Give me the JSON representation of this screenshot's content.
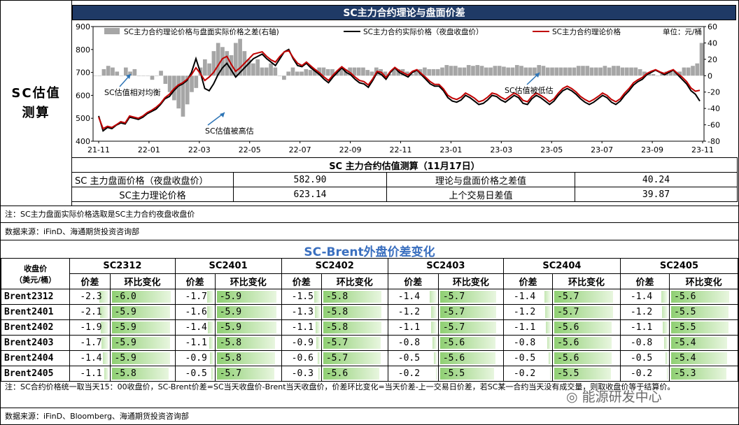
{
  "side_label": "SC估值\n测算",
  "chart_data": {
    "type": "line",
    "title": "SC主力合约理论与盘面价差",
    "unit_label": "单位：元/桶",
    "x_ticks": [
      "21-11",
      "22-01",
      "22-03",
      "22-05",
      "22-07",
      "22-09",
      "22-11",
      "23-01",
      "23-03",
      "23-05",
      "23-07",
      "23-09",
      "23-11"
    ],
    "y_left": {
      "min": 400,
      "max": 900,
      "ticks": [
        400,
        500,
        600,
        700,
        800,
        900
      ]
    },
    "y_right": {
      "min": -80,
      "max": 60,
      "ticks": [
        -80,
        -60,
        -40,
        -20,
        0,
        20,
        40,
        60
      ]
    },
    "series": [
      {
        "name": "SC主力合约理论价格与盘面实际价格之差(右轴)",
        "type": "bar",
        "color": "#a6a6a6"
      },
      {
        "name": "SC主力合约实际价格（夜盘收盘价）",
        "type": "line",
        "color": "#000000"
      },
      {
        "name": "SC主力合约理论价格",
        "type": "line",
        "color": "#c00000"
      }
    ],
    "annotations": [
      "SC估值相对均衡",
      "SC估值被高估",
      "SC估值被低估"
    ],
    "actual_price": [
      510,
      445,
      460,
      455,
      470,
      480,
      475,
      505,
      500,
      495,
      505,
      520,
      530,
      540,
      560,
      585,
      595,
      620,
      640,
      650,
      665,
      700,
      760,
      700,
      630,
      620,
      650,
      690,
      720,
      740,
      710,
      680,
      700,
      720,
      740,
      760,
      770,
      780,
      760,
      745,
      730,
      760,
      790,
      800,
      760,
      730,
      725,
      740,
      720,
      705,
      690,
      670,
      655,
      680,
      700,
      720,
      700,
      690,
      670,
      655,
      650,
      635,
      665,
      700,
      690,
      670,
      700,
      720,
      700,
      690,
      680,
      700,
      710,
      690,
      670,
      650,
      640,
      640,
      620,
      590,
      575,
      570,
      580,
      600,
      590,
      575,
      560,
      565,
      580,
      600,
      595,
      580,
      570,
      585,
      600,
      590,
      565,
      560,
      585,
      600,
      590,
      575,
      560,
      575,
      600,
      620,
      630,
      620,
      605,
      585,
      570,
      560,
      570,
      585,
      600,
      590,
      570,
      560,
      575,
      600,
      620,
      645,
      660,
      670,
      690,
      700,
      710,
      700,
      690,
      700,
      710,
      690,
      670,
      650,
      620,
      605,
      575
    ],
    "theory_price": [
      505,
      455,
      465,
      460,
      472,
      485,
      480,
      510,
      505,
      500,
      510,
      525,
      535,
      548,
      565,
      590,
      605,
      628,
      645,
      655,
      670,
      690,
      720,
      695,
      665,
      680,
      700,
      730,
      760,
      770,
      735,
      705,
      720,
      740,
      760,
      780,
      785,
      790,
      770,
      755,
      745,
      770,
      790,
      795,
      765,
      740,
      730,
      745,
      728,
      712,
      698,
      680,
      665,
      688,
      708,
      725,
      710,
      698,
      680,
      665,
      660,
      645,
      672,
      705,
      700,
      678,
      705,
      722,
      708,
      698,
      688,
      705,
      712,
      695,
      678,
      660,
      648,
      648,
      628,
      600,
      588,
      582,
      592,
      610,
      600,
      588,
      572,
      578,
      592,
      610,
      605,
      592,
      582,
      596,
      610,
      600,
      578,
      572,
      595,
      610,
      600,
      588,
      572,
      585,
      610,
      630,
      640,
      630,
      615,
      595,
      582,
      572,
      582,
      595,
      610,
      600,
      582,
      572,
      585,
      610,
      630,
      655,
      668,
      678,
      695,
      705,
      712,
      702,
      695,
      705,
      712,
      695,
      680,
      660,
      632,
      618,
      622
    ],
    "spread": [
      0,
      0,
      8,
      12,
      10,
      5,
      0,
      10,
      5,
      8,
      0,
      0,
      0,
      -5,
      0,
      6,
      -10,
      -20,
      -30,
      -40,
      -50,
      -35,
      -20,
      -15,
      10,
      20,
      15,
      30,
      40,
      35,
      30,
      25,
      40,
      45,
      30,
      20,
      15,
      20,
      10,
      10,
      15,
      10,
      0,
      -5,
      5,
      10,
      5,
      5,
      8,
      7,
      8,
      10,
      10,
      8,
      8,
      5,
      10,
      8,
      10,
      10,
      10,
      10,
      7,
      5,
      10,
      8,
      5,
      2,
      8,
      8,
      8,
      5,
      2,
      5,
      8,
      10,
      8,
      8,
      8,
      10,
      13,
      12,
      12,
      10,
      10,
      13,
      12,
      13,
      12,
      10,
      10,
      12,
      12,
      11,
      10,
      10,
      13,
      12,
      10,
      10,
      10,
      13,
      12,
      10,
      10,
      10,
      10,
      10,
      10,
      10,
      12,
      12,
      12,
      10,
      10,
      10,
      12,
      10,
      12,
      12,
      10,
      10,
      10,
      10,
      8,
      5,
      3,
      2,
      0,
      2,
      5,
      5,
      5,
      5,
      10,
      10,
      12,
      15,
      40
    ]
  },
  "valuation": {
    "header": "SC 主力合约估值测算（11月17日）",
    "rows": [
      {
        "l1": "SC 主力盘面价格（夜盘收盘价）",
        "v1": "582.90",
        "l2": "理论与盘面价格之差值",
        "v2": "40.24"
      },
      {
        "l1": "SC主力理论价格",
        "v1": "623.14",
        "l2": "上个交易日差值",
        "v2": "39.87"
      }
    ]
  },
  "note1": "注：SC主力盘面实际价格选取是SC主力合约夜盘收盘价",
  "source1": "数据来源：iFinD、海通期货投资咨询部",
  "section_title": "SC-Brent外盘价差变化",
  "spread_table": {
    "corner": "收盘价\n（美元/桶）",
    "contracts": [
      "SC2312",
      "SC2401",
      "SC2402",
      "SC2403",
      "SC2404",
      "SC2405"
    ],
    "sub_headers": [
      "价差",
      "环比变化"
    ],
    "rows": [
      {
        "label": "Brent2312",
        "cells": [
          [
            "-2.3",
            "-6.0"
          ],
          [
            "-1.7",
            "-5.9"
          ],
          [
            "-1.5",
            "-5.8"
          ],
          [
            "-1.4",
            "-5.7"
          ],
          [
            "-1.4",
            "-5.7"
          ],
          [
            "-1.4",
            "-5.6"
          ]
        ]
      },
      {
        "label": "Brent2401",
        "cells": [
          [
            "-2.1",
            "-5.9"
          ],
          [
            "-1.6",
            "-5.9"
          ],
          [
            "-1.3",
            "-5.8"
          ],
          [
            "-1.2",
            "-5.7"
          ],
          [
            "-1.2",
            "-5.7"
          ],
          [
            "-1.2",
            "-5.5"
          ]
        ]
      },
      {
        "label": "Brent2402",
        "cells": [
          [
            "-1.9",
            "-5.9"
          ],
          [
            "-1.4",
            "-5.9"
          ],
          [
            "-1.1",
            "-5.8"
          ],
          [
            "-1.1",
            "-5.7"
          ],
          [
            "-1.1",
            "-5.6"
          ],
          [
            "-1.1",
            "-5.5"
          ]
        ]
      },
      {
        "label": "Brent2403",
        "cells": [
          [
            "-1.7",
            "-5.9"
          ],
          [
            "-1.1",
            "-5.8"
          ],
          [
            "-0.9",
            "-5.7"
          ],
          [
            "-0.8",
            "-5.6"
          ],
          [
            "-0.8",
            "-5.6"
          ],
          [
            "-0.8",
            "-5.4"
          ]
        ]
      },
      {
        "label": "Brent2404",
        "cells": [
          [
            "-1.4",
            "-5.9"
          ],
          [
            "-0.9",
            "-5.8"
          ],
          [
            "-0.6",
            "-5.7"
          ],
          [
            "-0.5",
            "-5.6"
          ],
          [
            "-0.5",
            "-5.6"
          ],
          [
            "-0.5",
            "-5.4"
          ]
        ]
      },
      {
        "label": "Brent2405",
        "cells": [
          [
            "-1.1",
            "-5.8"
          ],
          [
            "-0.5",
            "-5.7"
          ],
          [
            "-0.3",
            "-5.6"
          ],
          [
            "-0.2",
            "-5.5"
          ],
          [
            "-0.2",
            "-5.5"
          ],
          [
            "-0.2",
            "-5.3"
          ]
        ]
      }
    ]
  },
  "note2": "注：SC合约价格统一取当天15：00收盘价，SC-Brent价差=SC当天收盘价-Brent当天收盘价，价差环比变化=当天价差-上一交易日价差，若SC某一合约当天没有成交量，则取收盘价等于结算价。",
  "source2": "数据来源：iFinD、Bloomberg、海通期货投资咨询部",
  "watermark": "能源研发中心"
}
